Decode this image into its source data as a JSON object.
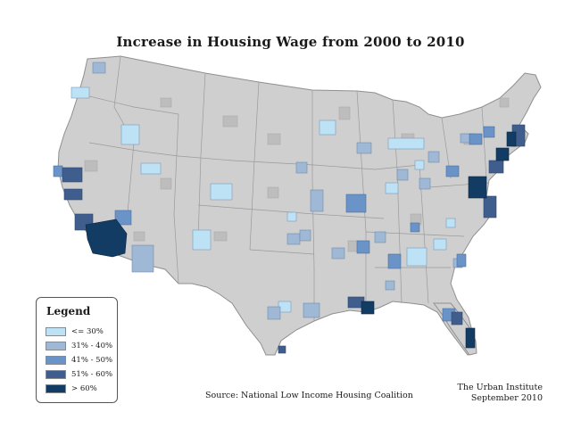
{
  "title": "Increase in Housing Wage from 2000 to 2010",
  "legend": {
    "title": "Legend",
    "items": [
      {
        "label": "<= 30%",
        "color": "#bde1f5"
      },
      {
        "label": "31% - 40%",
        "color": "#9fb8d6"
      },
      {
        "label": "41% - 50%",
        "color": "#6a93c7"
      },
      {
        "label": "51% - 60%",
        "color": "#3f5e8e"
      },
      {
        "label": "> 60%",
        "color": "#123c63"
      }
    ]
  },
  "source": "Source: National Low Income Housing Coalition",
  "credit": {
    "line1": "The Urban Institute",
    "line2": "September 2010"
  },
  "colors": {
    "base_region": "#cfcfcf",
    "county_shade": "#bdbdbd",
    "border": "#8f8f8f"
  }
}
